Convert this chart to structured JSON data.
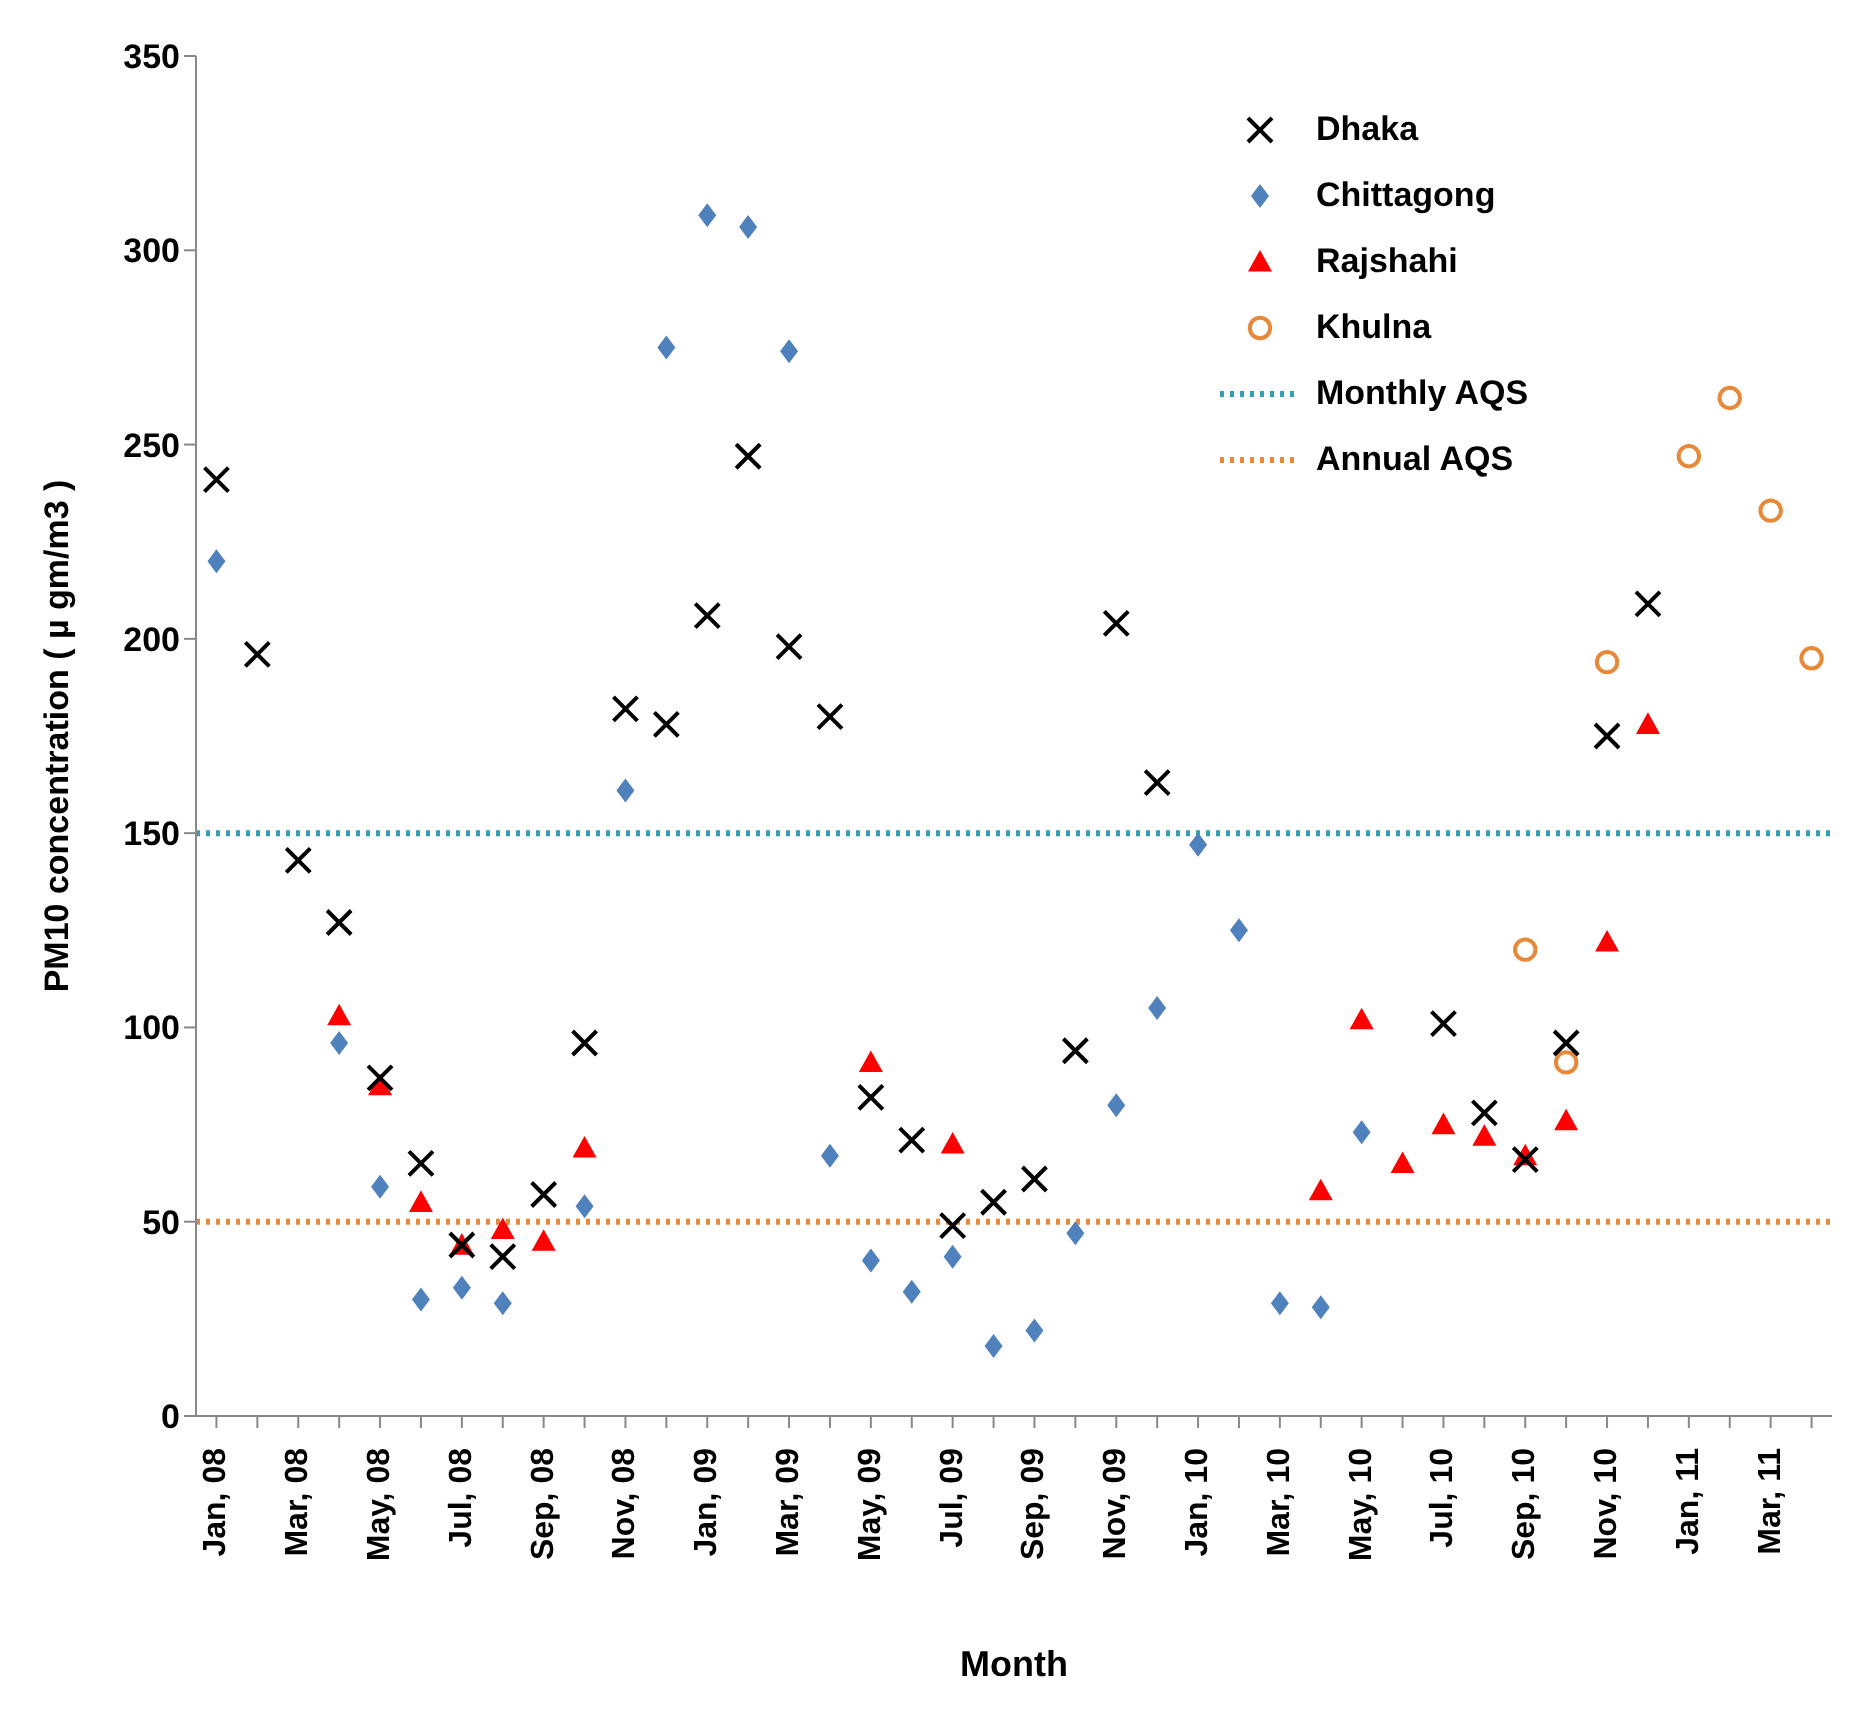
{
  "chart_data": {
    "type": "scatter",
    "xlabel": "Month",
    "ylabel": "PM10 concentration ( µ gm/m3 )",
    "categories": [
      "Jan, 08",
      null,
      "Mar, 08",
      null,
      "May, 08",
      null,
      "Jul, 08",
      null,
      "Sep, 08",
      null,
      "Nov, 08",
      null,
      "Jan, 09",
      null,
      "Mar, 09",
      null,
      "May, 09",
      null,
      "Jul, 09",
      null,
      "Sep, 09",
      null,
      "Nov, 09",
      null,
      "Jan, 10",
      null,
      "Mar, 10",
      null,
      "May, 10",
      null,
      "Jul, 10",
      null,
      "Sep, 10",
      null,
      "Nov, 10",
      null,
      "Jan, 11",
      null,
      "Mar, 11",
      null
    ],
    "series": [
      {
        "name": "Dhaka",
        "color": "#000000",
        "marker": "cross",
        "values": [
          241,
          196,
          143,
          127,
          87,
          65,
          44,
          41,
          57,
          96,
          182,
          178,
          206,
          247,
          198,
          180,
          82,
          71,
          49,
          55,
          61,
          94,
          204,
          163,
          null,
          null,
          null,
          null,
          null,
          null,
          101,
          78,
          66,
          96,
          175,
          209,
          null,
          null,
          null,
          null
        ]
      },
      {
        "name": "Chittagong",
        "color": "#4f81bd",
        "marker": "diamond",
        "values": [
          220,
          null,
          null,
          96,
          59,
          30,
          33,
          29,
          null,
          54,
          161,
          275,
          309,
          306,
          274,
          67,
          40,
          32,
          41,
          18,
          22,
          47,
          80,
          105,
          147,
          125,
          29,
          28,
          73,
          null,
          null,
          null,
          null,
          null,
          null,
          null,
          null,
          null,
          null,
          null
        ]
      },
      {
        "name": "Rajshahi",
        "color": "#ff0000",
        "marker": "triangle",
        "values": [
          null,
          null,
          null,
          103,
          85,
          55,
          44,
          48,
          45,
          69,
          null,
          null,
          null,
          null,
          null,
          null,
          91,
          null,
          70,
          null,
          null,
          null,
          null,
          null,
          null,
          null,
          null,
          58,
          102,
          65,
          75,
          72,
          67,
          76,
          122,
          178,
          null,
          null,
          null,
          null
        ]
      },
      {
        "name": "Khulna",
        "color": "#e8893a",
        "marker": "circle",
        "values": [
          null,
          null,
          null,
          null,
          null,
          null,
          null,
          null,
          null,
          null,
          null,
          null,
          null,
          null,
          null,
          null,
          null,
          null,
          null,
          null,
          null,
          null,
          null,
          null,
          null,
          null,
          null,
          null,
          null,
          null,
          null,
          null,
          120,
          91,
          194,
          null,
          247,
          262,
          233,
          195
        ]
      }
    ],
    "ref_lines": [
      {
        "axis": "y",
        "value": 150,
        "label": "Monthly AQS",
        "color": "#31a0b4",
        "line_style": "dotted"
      },
      {
        "axis": "y",
        "value": 50,
        "label": "Annual AQS",
        "color": "#e8893a",
        "line_style": "dotted"
      }
    ],
    "ylim": [
      0,
      350
    ],
    "yticks": [
      0,
      50,
      100,
      150,
      200,
      250,
      300,
      350
    ],
    "legend": "top right"
  }
}
